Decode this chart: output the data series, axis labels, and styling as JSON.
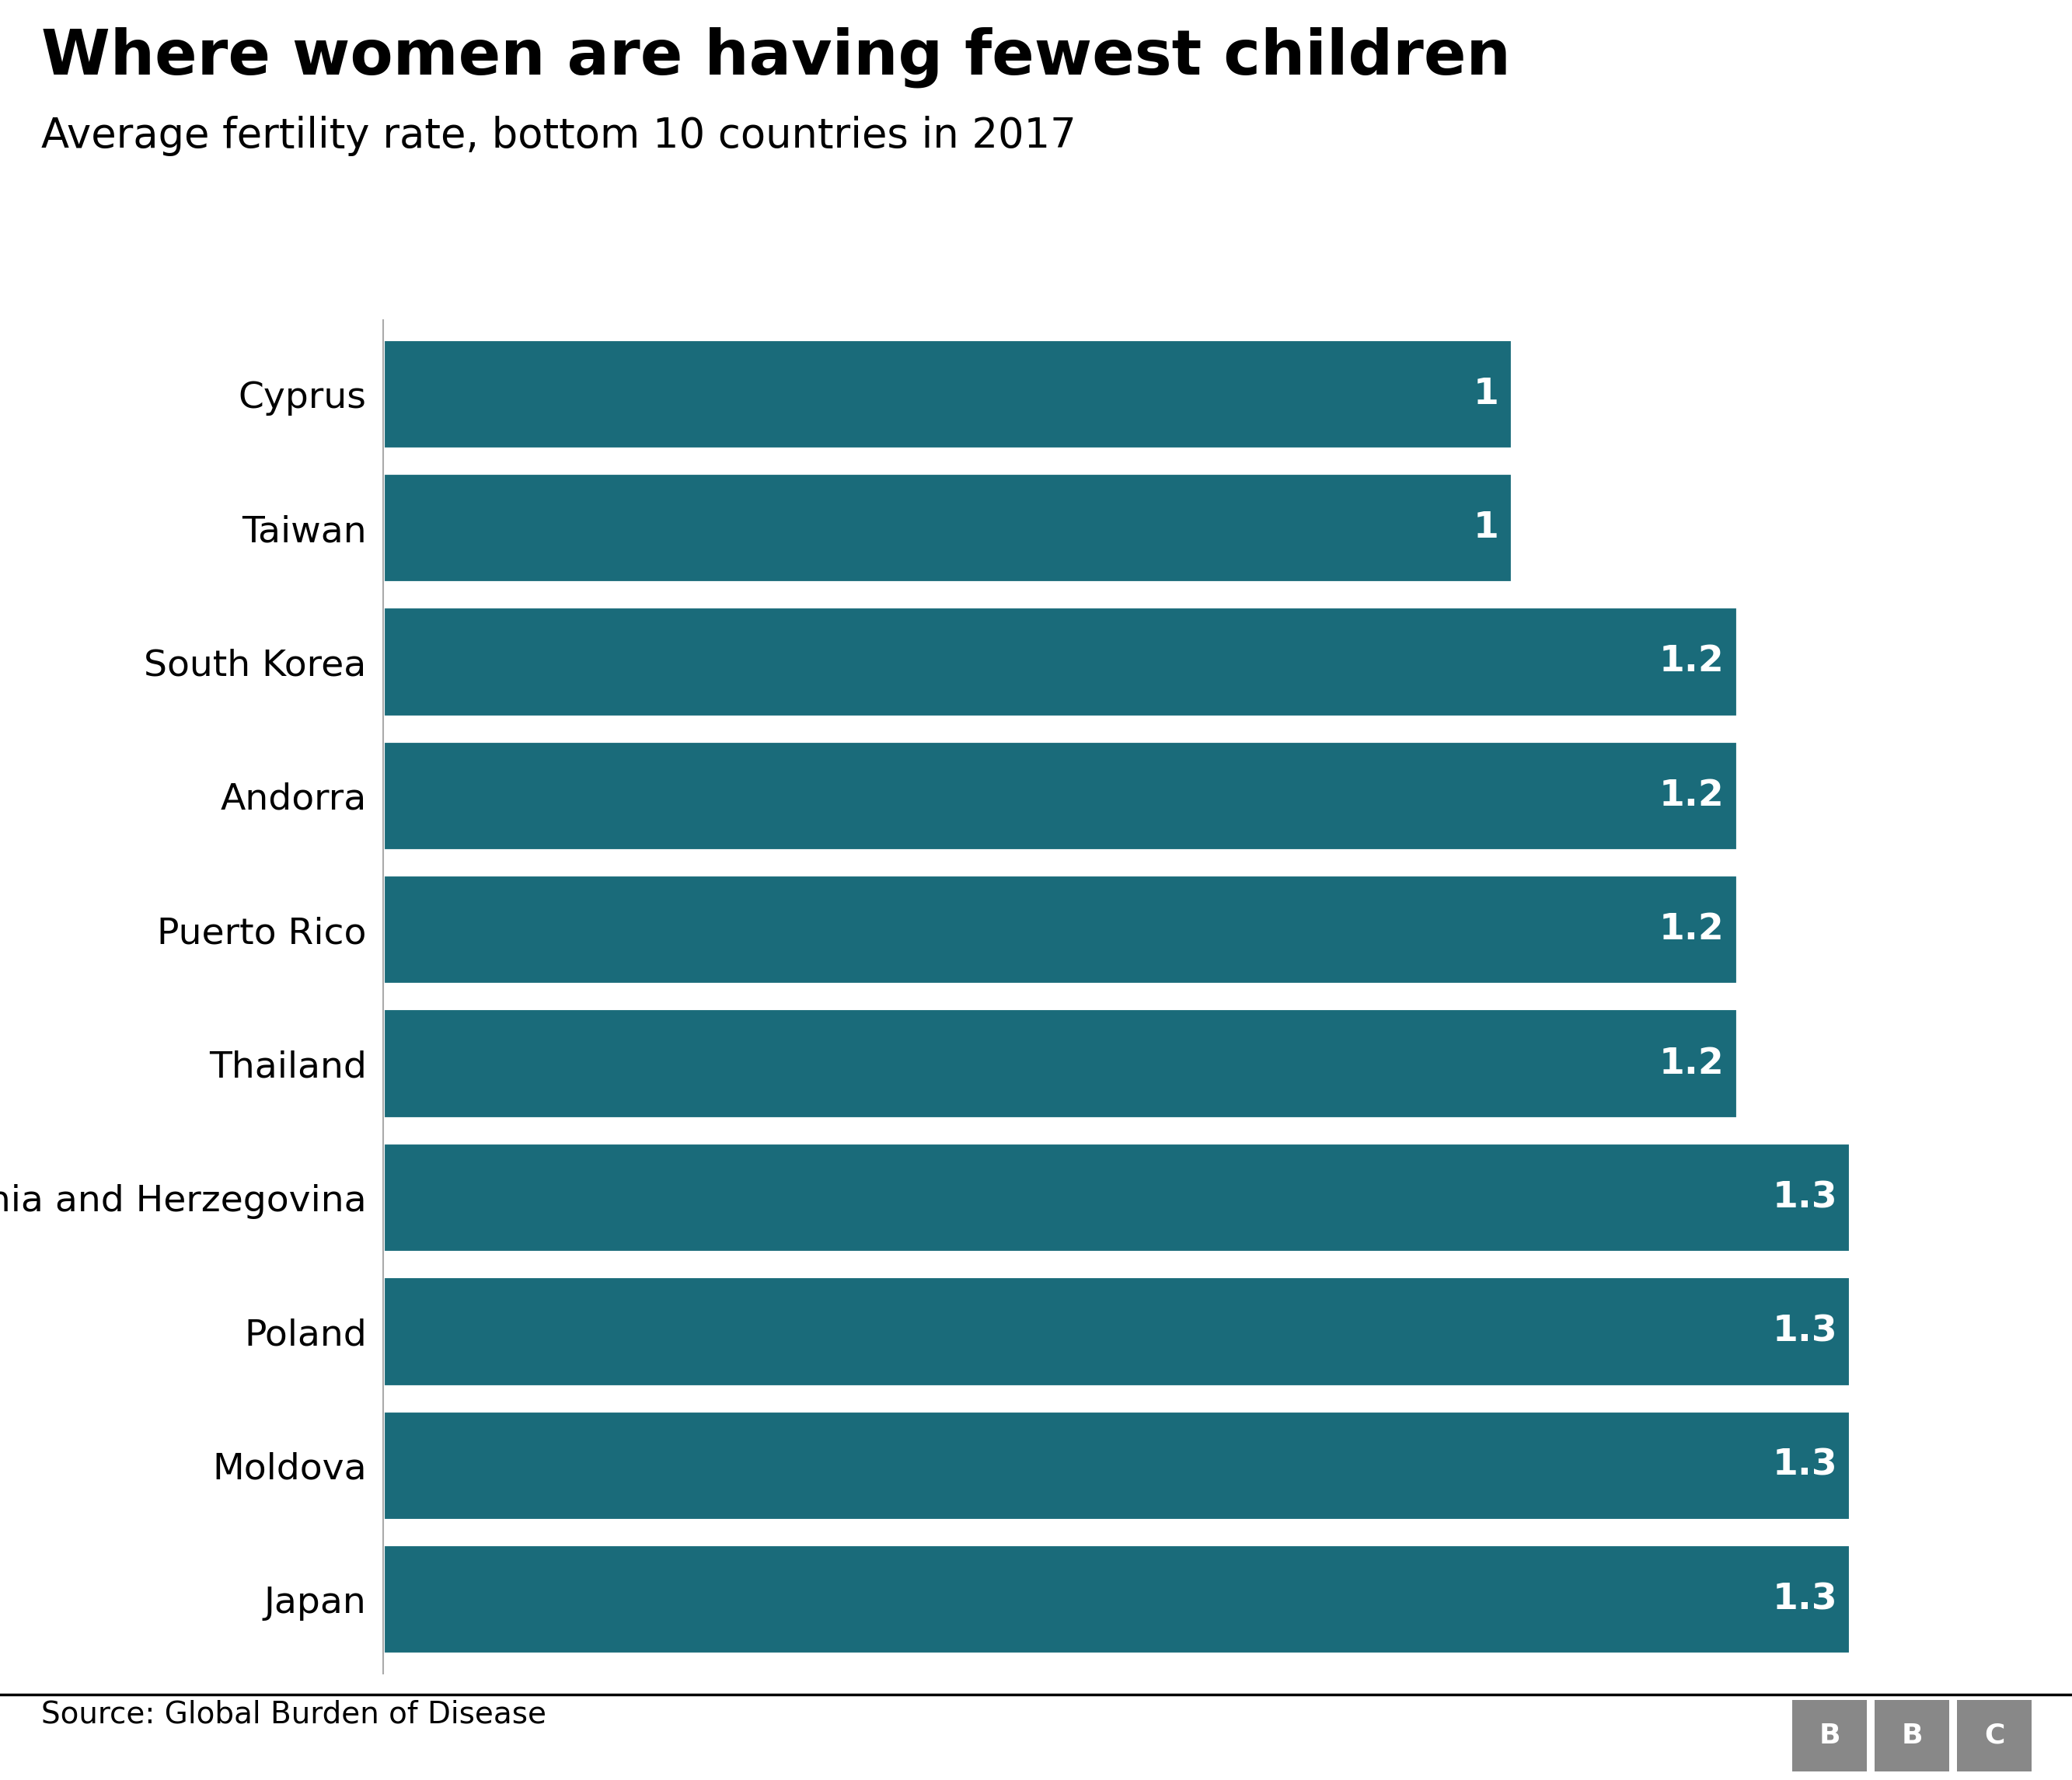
{
  "title": "Where women are having fewest children",
  "subtitle": "Average fertility rate, bottom 10 countries in 2017",
  "source": "Source: Global Burden of Disease",
  "countries": [
    "Cyprus",
    "Taiwan",
    "South Korea",
    "Andorra",
    "Puerto Rico",
    "Thailand",
    "Bosnia and Herzegovina",
    "Poland",
    "Moldova",
    "Japan"
  ],
  "values": [
    1.0,
    1.0,
    1.2,
    1.2,
    1.2,
    1.2,
    1.3,
    1.3,
    1.3,
    1.3
  ],
  "labels": [
    "1",
    "1",
    "1.2",
    "1.2",
    "1.2",
    "1.2",
    "1.3",
    "1.3",
    "1.3",
    "1.3"
  ],
  "bar_color": "#1a6b7a",
  "text_color": "#ffffff",
  "background_color": "#ffffff",
  "title_color": "#000000",
  "subtitle_color": "#000000",
  "source_color": "#000000",
  "xlim": [
    0,
    1.45
  ],
  "title_fontsize": 58,
  "subtitle_fontsize": 38,
  "label_fontsize": 34,
  "tick_fontsize": 34,
  "source_fontsize": 28,
  "bar_height": 0.82
}
